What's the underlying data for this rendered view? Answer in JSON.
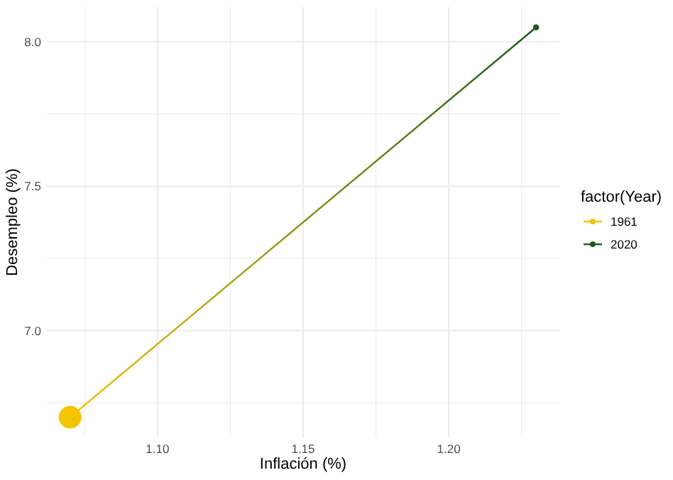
{
  "chart_data": {
    "type": "scatter",
    "xlabel": "Inflación (%)",
    "ylabel": "Desempleo (%)",
    "legend_title": "factor(Year)",
    "xlim": [
      1.062,
      1.238
    ],
    "ylim": [
      6.63,
      8.12
    ],
    "xticks": [
      {
        "value": 1.075,
        "label": null
      },
      {
        "value": 1.1,
        "label": "1.10"
      },
      {
        "value": 1.125,
        "label": null
      },
      1.15,
      {
        "value": 1.175,
        "label": null
      },
      {
        "value": 1.2,
        "label": "1.20"
      },
      {
        "value": 1.225,
        "label": null
      }
    ],
    "yticks": [
      {
        "value": 6.75,
        "label": null
      },
      {
        "value": 7,
        "label": "7.0"
      },
      {
        "value": 7.25,
        "label": null
      },
      7.5,
      {
        "value": 7.75,
        "label": null
      },
      {
        "value": 8,
        "label": "8.0"
      }
    ],
    "x": [
      1.07,
      1.23
    ],
    "grid": true,
    "legend": "right",
    "marker": "circle",
    "series": [
      {
        "type": "line",
        "marker": "none",
        "values": [
          6.7,
          8.05
        ],
        "colors": [
          "#f5c400",
          "#1a5c1a"
        ]
      },
      {
        "name": "1961",
        "color": "#f5c400",
        "values": [
          6.7,
          null
        ],
        "sizes": [
          1,
          null
        ]
      },
      {
        "name": "2020",
        "color": "#1a5c1a",
        "values": [
          null,
          8.05
        ],
        "sizes": [
          null,
          0.07
        ]
      }
    ]
  }
}
